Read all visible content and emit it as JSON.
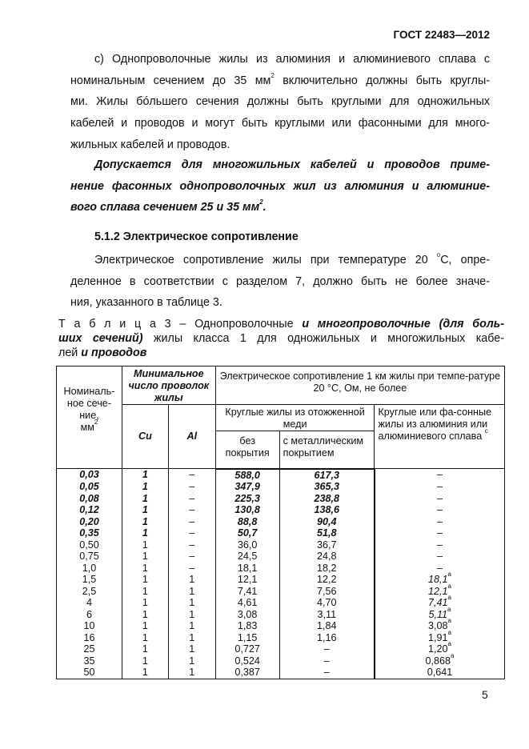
{
  "header": {
    "doc_id": "ГОСТ 22483—2012"
  },
  "para_c": {
    "l1": "c) Однопроволочные жилы из алюминия и алюминиевого сплава с",
    "l2a": "номинальным сечением до 35 мм",
    "l2sup": "2",
    "l2b": " включительно должны быть круглы-",
    "l3": "ми. Жилы бóльшего сечения должны быть круглыми для одножильных",
    "l4": "кабелей и проводов и могут быть круглыми или фасонными для много-",
    "l5": "жильных кабелей и проводов."
  },
  "para_allow": {
    "l1": "Допускается для многожильных кабелей и проводов приме-",
    "l2": "нение фасонных однопроволочных жил из алюминия и алюминие-",
    "l3a": "вого сплава сечением 25 и 35 мм",
    "l3sup": "2",
    "l3b": "."
  },
  "section_heading": "5.1.2 Электрическое сопротивление",
  "para_res": {
    "l1a": "Электрическое сопротивление жилы при температуре 20 ",
    "l1sup": "o",
    "l1b": "С, опре-",
    "l2": "деленное в соответствии с разделом 7,  должно быть не более  значе-",
    "l3": "ния, указанного в таблице 3."
  },
  "caption": {
    "label": "Т а б л и ц а 3 – ",
    "l1a": "Однопроволочные ",
    "l1b": "и многопроволочные (для боль-",
    "l2a": "ших сечений)",
    "l2b": " жилы класса 1 для одножильных и многожильных кабе-",
    "l3a": "лей ",
    "l3b": "и проводов"
  },
  "table": {
    "h_section": "Номиналь-ное сече-ние,",
    "h_section_unit": "мм",
    "h_section_sup": "2",
    "h_min_wires": "Минимальное число проволок жилы",
    "h_cu": "Cu",
    "h_al": "Al",
    "h_resistance": "Электрическое сопротивление 1 км жилы при темпе-ратуре 20 °С, Ом, не более",
    "h_round_copper": "Круглые жилы из отожженной меди",
    "h_bare": "без покрытия",
    "h_coated": "с металлическим покрытием",
    "h_aluminium": "Круглые или фа-сонные жилы из алюминия или алюминиевого сплава",
    "h_aluminium_sup": "c",
    "rows": [
      {
        "s": "0,03",
        "cu": "1",
        "al": "–",
        "bare": "588,0",
        "coated": "617,3",
        "alr": "–",
        "sup": "",
        "bold": true,
        "ital": false
      },
      {
        "s": "0,05",
        "cu": "1",
        "al": "–",
        "bare": "347,9",
        "coated": "365,3",
        "alr": "–",
        "sup": "",
        "bold": true,
        "ital": false
      },
      {
        "s": "0,08",
        "cu": "1",
        "al": "–",
        "bare": "225,3",
        "coated": "238,8",
        "alr": "–",
        "sup": "",
        "bold": true,
        "ital": false
      },
      {
        "s": "0,12",
        "cu": "1",
        "al": "–",
        "bare": "130,8",
        "coated": "138,6",
        "alr": "–",
        "sup": "",
        "bold": true,
        "ital": false
      },
      {
        "s": "0,20",
        "cu": "1",
        "al": "–",
        "bare": "88,8",
        "coated": "90,4",
        "alr": "–",
        "sup": "",
        "bold": true,
        "ital": false
      },
      {
        "s": "0,35",
        "cu": "1",
        "al": "–",
        "bare": "50,7",
        "coated": "51,8",
        "alr": "–",
        "sup": "",
        "bold": true,
        "ital": false
      },
      {
        "s": "0,50",
        "cu": "1",
        "al": "–",
        "bare": "36,0",
        "coated": "36,7",
        "alr": "–",
        "sup": "",
        "bold": false,
        "ital": false
      },
      {
        "s": "0,75",
        "cu": "1",
        "al": "–",
        "bare": "24,5",
        "coated": "24,8",
        "alr": "–",
        "sup": "",
        "bold": false,
        "ital": false
      },
      {
        "s": "1,0",
        "cu": "1",
        "al": "–",
        "bare": "18,1",
        "coated": "18,2",
        "alr": "–",
        "sup": "",
        "bold": false,
        "ital": false
      },
      {
        "s": "1,5",
        "cu": "1",
        "al": "1",
        "bare": "12,1",
        "coated": "12,2",
        "alr": "18,1",
        "sup": "a",
        "bold": false,
        "ital": true
      },
      {
        "s": "2,5",
        "cu": "1",
        "al": "1",
        "bare": "7,41",
        "coated": "7,56",
        "alr": "12,1",
        "sup": "a",
        "bold": false,
        "ital": true
      },
      {
        "s": "4",
        "cu": "1",
        "al": "1",
        "bare": "4,61",
        "coated": "4,70",
        "alr": "7,41",
        "sup": "a",
        "bold": false,
        "ital": true
      },
      {
        "s": "6",
        "cu": "1",
        "al": "1",
        "bare": "3,08",
        "coated": "3,11",
        "alr": "5,11",
        "sup": "a",
        "bold": false,
        "ital": true
      },
      {
        "s": "10",
        "cu": "1",
        "al": "1",
        "bare": "1,83",
        "coated": "1,84",
        "alr": "3,08",
        "sup": "a",
        "bold": false,
        "ital": false
      },
      {
        "s": "16",
        "cu": "1",
        "al": "1",
        "bare": "1,15",
        "coated": "1,16",
        "alr": "1,91",
        "sup": "a",
        "bold": false,
        "ital": false
      },
      {
        "s": "25",
        "cu": "1",
        "al": "1",
        "bare": "0,727",
        "coated": "–",
        "alr": "1,20",
        "sup": "a",
        "bold": false,
        "ital": false
      },
      {
        "s": "35",
        "cu": "1",
        "al": "1",
        "bare": "0,524",
        "coated": "–",
        "alr": "0,868",
        "sup": "a",
        "bold": false,
        "ital": false
      },
      {
        "s": "50",
        "cu": "1",
        "al": "1",
        "bare": "0,387",
        "coated": "–",
        "alr": "0,641",
        "sup": "",
        "bold": false,
        "ital": false
      }
    ]
  },
  "page_number": "5"
}
